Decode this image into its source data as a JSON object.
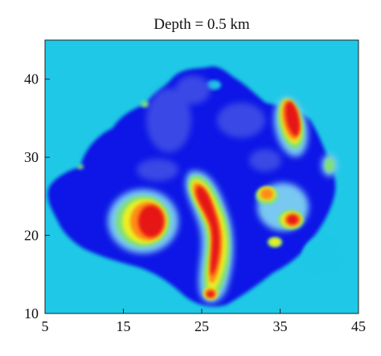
{
  "chart_data": {
    "type": "heatmap",
    "title": "Depth = 0.5 km",
    "xlabel": "",
    "ylabel": "",
    "xlim": [
      5,
      45
    ],
    "ylim": [
      10,
      45
    ],
    "x_ticks": [
      5,
      15,
      25,
      35,
      45
    ],
    "y_ticks": [
      10,
      20,
      30,
      40
    ],
    "grid": false,
    "legend": "none",
    "background_color": "#1ec8e6",
    "colormap": [
      "#0a14e6",
      "#3a5ae8",
      "#5aa8f0",
      "#7fe07a",
      "#e8f020",
      "#ff8a14",
      "#e61414"
    ],
    "anomaly_centers": [
      {
        "x": 18.5,
        "y": 21.5,
        "level": "high"
      },
      {
        "x": 25.5,
        "y": 25.0,
        "level": "high"
      },
      {
        "x": 26.5,
        "y": 19.0,
        "level": "high"
      },
      {
        "x": 26.5,
        "y": 15.0,
        "level": "high"
      },
      {
        "x": 36.5,
        "y": 32.5,
        "level": "high"
      },
      {
        "x": 35.5,
        "y": 37.0,
        "level": "high"
      },
      {
        "x": 37.0,
        "y": 22.0,
        "level": "high"
      },
      {
        "x": 33.0,
        "y": 25.0,
        "level": "moderate"
      },
      {
        "x": 34.5,
        "y": 19.5,
        "level": "moderate"
      }
    ]
  }
}
